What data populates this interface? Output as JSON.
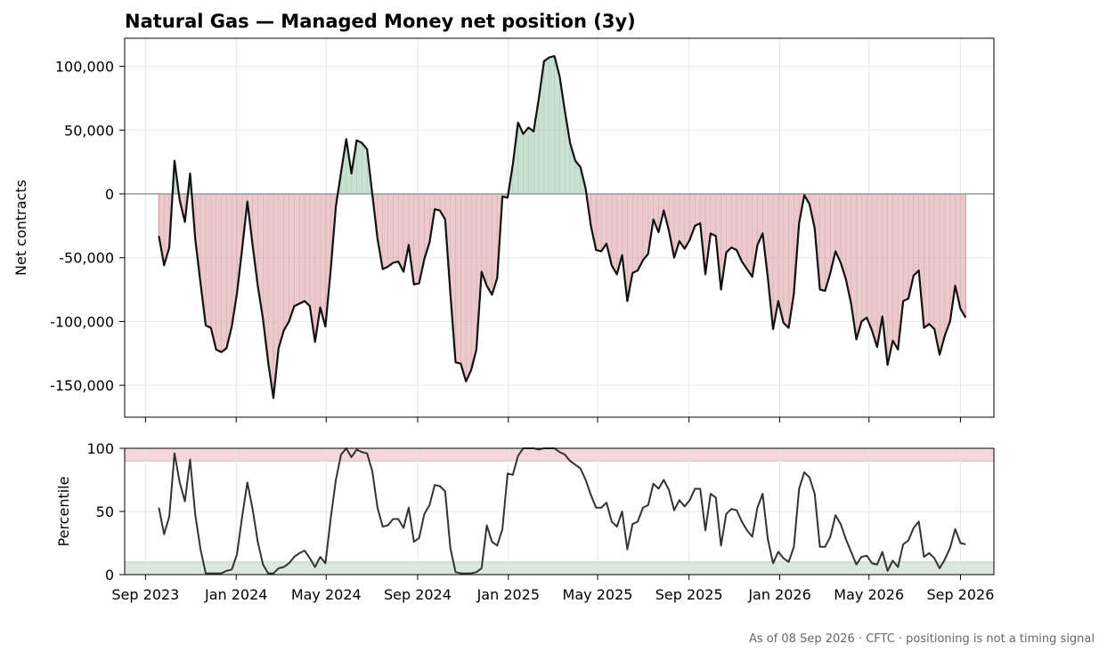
{
  "title": "Natural Gas — Managed Money net position (3y)",
  "footer": "As of 08 Sep 2026 · CFTC · positioning is not a timing signal",
  "colors": {
    "line": "#111111",
    "positive_fill": "#a7ccb4",
    "negative_fill": "#dca7ac",
    "zero_line": "#999999",
    "grid": "#e6e6e6",
    "upper_band": "#f2d3d7",
    "lower_band": "#d6e6dc"
  },
  "chart_data": [
    {
      "type": "area",
      "title": "Natural Gas — Managed Money net position (3y)",
      "ylabel": "Net contracts",
      "ylim": [
        -175000,
        122000
      ],
      "yticks": [
        100000,
        50000,
        0,
        -50000,
        -100000,
        -150000
      ],
      "ytick_labels": [
        "100,000",
        "50,000",
        "0",
        "-50,000",
        "-100,000",
        "-150,000"
      ],
      "x_range": [
        "2023-08-04",
        "2026-10-16"
      ],
      "xticks": [
        "2023-09-01",
        "2024-01-01",
        "2024-05-01",
        "2024-09-01",
        "2025-01-01",
        "2025-05-01",
        "2025-09-01",
        "2026-01-01",
        "2026-05-01",
        "2026-09-01"
      ],
      "xtick_labels": [
        "Sep 2023",
        "Jan 2024",
        "May 2024",
        "Sep 2024",
        "Jan 2025",
        "May 2025",
        "Sep 2025",
        "Jan 2026",
        "May 2026",
        "Sep 2026"
      ],
      "grid": true,
      "x": [
        "2023-09-19",
        "2023-09-26",
        "2023-10-03",
        "2023-10-10",
        "2023-10-17",
        "2023-10-24",
        "2023-10-31",
        "2023-11-07",
        "2023-11-14",
        "2023-11-21",
        "2023-11-28",
        "2023-12-05",
        "2023-12-12",
        "2023-12-19",
        "2023-12-26",
        "2024-01-02",
        "2024-01-09",
        "2024-01-16",
        "2024-01-23",
        "2024-01-30",
        "2024-02-06",
        "2024-02-13",
        "2024-02-20",
        "2024-02-27",
        "2024-03-05",
        "2024-03-12",
        "2024-03-19",
        "2024-03-26",
        "2024-04-02",
        "2024-04-09",
        "2024-04-16",
        "2024-04-23",
        "2024-04-30",
        "2024-05-07",
        "2024-05-14",
        "2024-05-21",
        "2024-05-28",
        "2024-06-04",
        "2024-06-11",
        "2024-06-18",
        "2024-06-25",
        "2024-07-02",
        "2024-07-09",
        "2024-07-16",
        "2024-07-23",
        "2024-07-30",
        "2024-08-06",
        "2024-08-13",
        "2024-08-20",
        "2024-08-27",
        "2024-09-03",
        "2024-09-10",
        "2024-09-17",
        "2024-09-24",
        "2024-10-01",
        "2024-10-08",
        "2024-10-15",
        "2024-10-22",
        "2024-10-29",
        "2024-11-05",
        "2024-11-12",
        "2024-11-19",
        "2024-11-26",
        "2024-12-03",
        "2024-12-10",
        "2024-12-17",
        "2024-12-24",
        "2024-12-31",
        "2025-01-07",
        "2025-01-14",
        "2025-01-21",
        "2025-01-28",
        "2025-02-04",
        "2025-02-11",
        "2025-02-18",
        "2025-02-25",
        "2025-03-04",
        "2025-03-11",
        "2025-03-18",
        "2025-03-25",
        "2025-04-01",
        "2025-04-08",
        "2025-04-15",
        "2025-04-22",
        "2025-04-29",
        "2025-05-06",
        "2025-05-13",
        "2025-05-20",
        "2025-05-27",
        "2025-06-03",
        "2025-06-10",
        "2025-06-17",
        "2025-06-24",
        "2025-07-01",
        "2025-07-08",
        "2025-07-15",
        "2025-07-22",
        "2025-07-29",
        "2025-08-05",
        "2025-08-12",
        "2025-08-19",
        "2025-08-26",
        "2025-09-02",
        "2025-09-09",
        "2025-09-16",
        "2025-09-23",
        "2025-09-30",
        "2025-10-07",
        "2025-10-14",
        "2025-10-21",
        "2025-10-28",
        "2025-11-04",
        "2025-11-11",
        "2025-11-18",
        "2025-11-25",
        "2025-12-02",
        "2025-12-09",
        "2025-12-16",
        "2025-12-23",
        "2025-12-30",
        "2026-01-06",
        "2026-01-13",
        "2026-01-20",
        "2026-01-27",
        "2026-02-03",
        "2026-02-10",
        "2026-02-17",
        "2026-02-24",
        "2026-03-03",
        "2026-03-10",
        "2026-03-17",
        "2026-03-24",
        "2026-03-31",
        "2026-04-07",
        "2026-04-14",
        "2026-04-21",
        "2026-04-28",
        "2026-05-05",
        "2026-05-12",
        "2026-05-19",
        "2026-05-26",
        "2026-06-02",
        "2026-06-09",
        "2026-06-16",
        "2026-06-23",
        "2026-06-30",
        "2026-07-07",
        "2026-07-14",
        "2026-07-21",
        "2026-07-28",
        "2026-08-04",
        "2026-08-11",
        "2026-08-18",
        "2026-08-25",
        "2026-09-01",
        "2026-09-08"
      ],
      "series": [
        {
          "values": [
            -33000,
            -56000,
            -42000,
            26000,
            -5000,
            -22000,
            16000,
            -36000,
            -70000,
            -103000,
            -105000,
            -122000,
            -124000,
            -121000,
            -104000,
            -78000,
            -43000,
            -6000,
            -40000,
            -72000,
            -98000,
            -132000,
            -160000,
            -121000,
            -107000,
            -100000,
            -88000,
            -86000,
            -84000,
            -88000,
            -116000,
            -89000,
            -104000,
            -60000,
            -10000,
            17000,
            43000,
            16000,
            42000,
            40000,
            35000,
            0,
            -35000,
            -59000,
            -57000,
            -54000,
            -53000,
            -61000,
            -40000,
            -71000,
            -70000,
            -51000,
            -38000,
            -12000,
            -13000,
            -20000,
            -78000,
            -132000,
            -133000,
            -147000,
            -138000,
            -122000,
            -61000,
            -72000,
            -79000,
            -66000,
            -2000,
            -3000,
            23000,
            56000,
            47000,
            52000,
            49000,
            75000,
            104000,
            107000,
            108000,
            92000,
            65000,
            40000,
            26000,
            21000,
            4000,
            -25000,
            -44000,
            -45000,
            -39000,
            -56000,
            -63000,
            -48000,
            -84000,
            -62000,
            -60000,
            -52000,
            -47000,
            -20000,
            -30000,
            -13000,
            -29000,
            -50000,
            -37000,
            -43000,
            -36000,
            -25000,
            -23000,
            -63000,
            -31000,
            -33000,
            -75000,
            -46000,
            -42000,
            -44000,
            -53000,
            -59000,
            -65000,
            -40000,
            -31000,
            -66000,
            -106000,
            -84000,
            -101000,
            -105000,
            -78000,
            -23000,
            -1000,
            -8000,
            -27000,
            -75000,
            -76000,
            -62000,
            -45000,
            -54000,
            -67000,
            -86000,
            -114000,
            -100000,
            -97000,
            -107000,
            -120000,
            -96000,
            -134000,
            -115000,
            -122000,
            -84000,
            -82000,
            -64000,
            -60000,
            -105000,
            -102000,
            -106000,
            -126000,
            -111000,
            -100000,
            -72000,
            -90000,
            -97000
          ]
        }
      ]
    },
    {
      "type": "line",
      "ylabel": "Percentile",
      "ylim": [
        0,
        100
      ],
      "yticks": [
        0,
        50,
        100
      ],
      "ytick_labels": [
        "0",
        "50",
        "100"
      ],
      "bands": [
        {
          "from": 90,
          "to": 100,
          "color": "#f2d3d7"
        },
        {
          "from": 0,
          "to": 10,
          "color": "#d6e6dc"
        }
      ],
      "grid": true,
      "series": [
        {
          "values": [
            53,
            32,
            46,
            96,
            73,
            58,
            91,
            47,
            20,
            1,
            1,
            1,
            1,
            3,
            4,
            16,
            46,
            73,
            52,
            26,
            8,
            1,
            1,
            5,
            6,
            9,
            14,
            17,
            19,
            13,
            6,
            14,
            9,
            44,
            75,
            95,
            100,
            93,
            99,
            97,
            96,
            82,
            53,
            38,
            39,
            44,
            44,
            37,
            53,
            26,
            29,
            48,
            55,
            71,
            70,
            66,
            21,
            2,
            1,
            1,
            1,
            2,
            5,
            39,
            26,
            23,
            36,
            80,
            79,
            94,
            100,
            100,
            100,
            99,
            100,
            100,
            100,
            97,
            95,
            90,
            87,
            84,
            75,
            63,
            53,
            53,
            57,
            42,
            38,
            50,
            20,
            40,
            42,
            53,
            55,
            72,
            68,
            75,
            67,
            51,
            59,
            54,
            59,
            68,
            68,
            35,
            64,
            61,
            23,
            48,
            52,
            51,
            42,
            35,
            30,
            53,
            64,
            28,
            9,
            18,
            13,
            10,
            22,
            68,
            81,
            77,
            64,
            22,
            22,
            30,
            47,
            40,
            28,
            18,
            8,
            14,
            15,
            9,
            8,
            18,
            3,
            11,
            6,
            24,
            27,
            37,
            42,
            14,
            17,
            13,
            5,
            12,
            21,
            36,
            25,
            24
          ]
        }
      ]
    }
  ]
}
